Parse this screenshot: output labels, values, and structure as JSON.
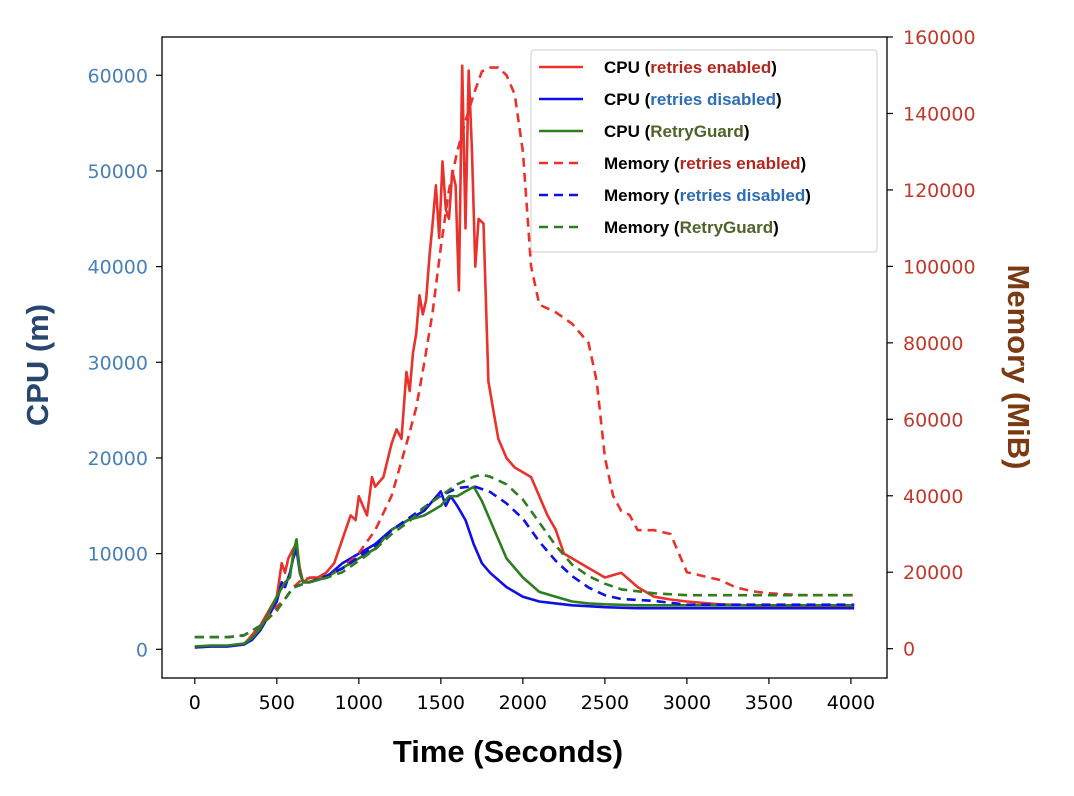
{
  "chart_data": {
    "type": "line",
    "xlabel": "Time (Seconds)",
    "ylabel_left": "CPU (m)",
    "ylabel_right": "Memory (MiB)",
    "xlim": [
      -200,
      4220
    ],
    "ylim_left": [
      -3000,
      64000
    ],
    "ylim_right": [
      -7666,
      160000
    ],
    "x_ticks": [
      0,
      500,
      1000,
      1500,
      2000,
      2500,
      3000,
      3500,
      4000
    ],
    "y_left_ticks": [
      0,
      10000,
      20000,
      30000,
      40000,
      50000,
      60000
    ],
    "y_right_ticks": [
      0,
      20000,
      40000,
      60000,
      80000,
      100000,
      120000,
      140000,
      160000
    ],
    "grid": false,
    "legend_position": "top-right",
    "colors": {
      "enabled": "#e8322b",
      "disabled": "#1010e6",
      "retryguard": "#2e7d1e",
      "left_axis_ticks": "#4a80b8",
      "right_axis_ticks": "#c0392b",
      "left_axis_title": "#27476e",
      "right_axis_title": "#7a3b12",
      "legend_enabled_text": "#b0281f",
      "legend_disabled_text": "#2e6db4",
      "legend_retryguard_text": "#4f6228"
    },
    "series": [
      {
        "name": "CPU (retries enabled)",
        "key": "enabled",
        "axis": "left",
        "dashed": false,
        "x": [
          0,
          100,
          200,
          300,
          350,
          400,
          450,
          500,
          530,
          550,
          570,
          600,
          620,
          640,
          660,
          700,
          750,
          800,
          850,
          900,
          950,
          980,
          1000,
          1050,
          1080,
          1100,
          1150,
          1200,
          1230,
          1260,
          1290,
          1310,
          1330,
          1350,
          1370,
          1390,
          1410,
          1430,
          1450,
          1470,
          1490,
          1510,
          1530,
          1550,
          1570,
          1590,
          1610,
          1630,
          1650,
          1670,
          1690,
          1710,
          1730,
          1760,
          1790,
          1820,
          1850,
          1900,
          1950,
          2000,
          2050,
          2100,
          2150,
          2200,
          2250,
          2300,
          2400,
          2500,
          2600,
          2700,
          2800,
          2900,
          3000,
          3200,
          3500,
          3800,
          4020
        ],
        "y": [
          200,
          300,
          300,
          500,
          1500,
          2500,
          4000,
          5500,
          9000,
          8000,
          9500,
          10500,
          11000,
          8500,
          7000,
          7500,
          7500,
          8000,
          9000,
          11500,
          14000,
          13500,
          16000,
          14000,
          18000,
          17000,
          18000,
          21500,
          23000,
          22000,
          29000,
          27000,
          31000,
          33000,
          37000,
          35000,
          36500,
          41000,
          44500,
          48500,
          43000,
          51000,
          46000,
          45000,
          50000,
          48500,
          37500,
          61000,
          44000,
          60500,
          52000,
          40000,
          45000,
          44500,
          28000,
          25000,
          22000,
          20000,
          19000,
          18500,
          18000,
          16000,
          14000,
          12500,
          10000,
          9500,
          8500,
          7500,
          8000,
          6500,
          5500,
          5200,
          5000,
          4700,
          4500,
          4500,
          4500
        ]
      },
      {
        "name": "CPU (retries disabled)",
        "key": "disabled",
        "axis": "left",
        "dashed": false,
        "x": [
          0,
          100,
          200,
          300,
          350,
          400,
          450,
          500,
          530,
          550,
          580,
          600,
          620,
          640,
          660,
          700,
          800,
          900,
          1000,
          1100,
          1200,
          1300,
          1400,
          1450,
          1500,
          1530,
          1560,
          1600,
          1650,
          1700,
          1750,
          1800,
          1900,
          2000,
          2100,
          2200,
          2300,
          2400,
          2500,
          2700,
          3000,
          3500,
          4020
        ],
        "y": [
          200,
          300,
          300,
          500,
          1000,
          2000,
          3500,
          5000,
          7000,
          6500,
          8000,
          9500,
          10500,
          8000,
          7000,
          7000,
          7500,
          9000,
          10000,
          11000,
          12500,
          13500,
          14500,
          15500,
          16500,
          15000,
          16000,
          15000,
          13500,
          11000,
          9000,
          8000,
          6500,
          5500,
          5000,
          4800,
          4600,
          4500,
          4400,
          4300,
          4300,
          4300,
          4300
        ]
      },
      {
        "name": "CPU (RetryGuard)",
        "key": "retryguard",
        "axis": "left",
        "dashed": false,
        "x": [
          0,
          100,
          200,
          300,
          350,
          400,
          450,
          500,
          550,
          580,
          600,
          620,
          640,
          660,
          700,
          800,
          900,
          1000,
          1100,
          1200,
          1300,
          1400,
          1500,
          1550,
          1600,
          1650,
          1700,
          1750,
          1800,
          1850,
          1900,
          2000,
          2100,
          2200,
          2300,
          2400,
          2500,
          2700,
          3000,
          3500,
          4020
        ],
        "y": [
          300,
          400,
          400,
          600,
          1200,
          2200,
          3800,
          5500,
          7000,
          7500,
          10000,
          11500,
          8000,
          7000,
          7000,
          7500,
          8500,
          9500,
          10500,
          12500,
          13500,
          14000,
          15000,
          16000,
          16000,
          16500,
          17000,
          15500,
          13500,
          11500,
          9500,
          7500,
          6000,
          5500,
          5000,
          4800,
          4700,
          4600,
          4600,
          4600,
          4600
        ]
      },
      {
        "name": "Memory (retries enabled)",
        "key": "enabled",
        "axis": "right",
        "dashed": true,
        "x": [
          0,
          100,
          200,
          300,
          400,
          500,
          550,
          600,
          650,
          700,
          800,
          900,
          1000,
          1100,
          1200,
          1300,
          1350,
          1400,
          1450,
          1500,
          1550,
          1600,
          1650,
          1700,
          1750,
          1800,
          1850,
          1900,
          1950,
          2000,
          2050,
          2100,
          2200,
          2300,
          2400,
          2450,
          2500,
          2550,
          2600,
          2650,
          2700,
          2800,
          2900,
          3000,
          3100,
          3200,
          3300,
          3400,
          3500,
          3700,
          4020
        ],
        "y": [
          3000,
          3000,
          3000,
          3500,
          6000,
          11000,
          13000,
          16000,
          18000,
          18500,
          19000,
          21000,
          25000,
          31000,
          40000,
          55000,
          63000,
          75000,
          88000,
          105000,
          120000,
          130000,
          138000,
          145000,
          151000,
          152000,
          152000,
          150000,
          145000,
          130000,
          100000,
          90000,
          88000,
          85000,
          80000,
          70000,
          50000,
          40000,
          36000,
          35000,
          31000,
          31000,
          30000,
          20000,
          19000,
          18000,
          16000,
          15000,
          14500,
          14000,
          14000
        ]
      },
      {
        "name": "Memory (retries disabled)",
        "key": "disabled",
        "axis": "right",
        "dashed": true,
        "x": [
          0,
          100,
          200,
          300,
          400,
          500,
          600,
          700,
          800,
          900,
          1000,
          1100,
          1200,
          1300,
          1400,
          1500,
          1550,
          1600,
          1700,
          1800,
          1900,
          2000,
          2100,
          2200,
          2300,
          2400,
          2500,
          2600,
          2800,
          3000,
          3500,
          4020
        ],
        "y": [
          3000,
          3000,
          3000,
          3500,
          6000,
          10000,
          16000,
          17500,
          19000,
          21000,
          24000,
          27000,
          31000,
          34000,
          37000,
          40000,
          41000,
          42000,
          42500,
          41000,
          38000,
          34000,
          28000,
          23000,
          19000,
          16000,
          14000,
          13000,
          12500,
          11500,
          11500,
          11500
        ]
      },
      {
        "name": "Memory (RetryGuard)",
        "key": "retryguard",
        "axis": "right",
        "dashed": true,
        "x": [
          0,
          100,
          200,
          300,
          400,
          500,
          600,
          700,
          800,
          900,
          1000,
          1100,
          1200,
          1300,
          1400,
          1500,
          1550,
          1600,
          1700,
          1750,
          1800,
          1900,
          2000,
          2100,
          2200,
          2300,
          2400,
          2500,
          2600,
          2700,
          2800,
          3000,
          3500,
          4020
        ],
        "y": [
          3000,
          3000,
          3000,
          3500,
          6000,
          10000,
          16000,
          17500,
          18500,
          20000,
          23000,
          26000,
          30000,
          33000,
          37000,
          40000,
          41500,
          43000,
          45000,
          45500,
          45000,
          43000,
          39000,
          33000,
          27000,
          22000,
          19000,
          17000,
          15500,
          15000,
          14500,
          14000,
          14000,
          14000
        ]
      }
    ],
    "legend": [
      {
        "prefix": "CPU (",
        "highlight": "retries enabled",
        "suffix": ")",
        "key": "enabled",
        "dashed": false
      },
      {
        "prefix": "CPU (",
        "highlight": "retries disabled",
        "suffix": ")",
        "key": "disabled",
        "dashed": false
      },
      {
        "prefix": "CPU (",
        "highlight": "RetryGuard",
        "suffix": ")",
        "key": "retryguard",
        "dashed": false
      },
      {
        "prefix": "Memory (",
        "highlight": "retries enabled",
        "suffix": ")",
        "key": "enabled",
        "dashed": true
      },
      {
        "prefix": "Memory (",
        "highlight": "retries disabled",
        "suffix": ")",
        "key": "disabled",
        "dashed": true
      },
      {
        "prefix": "Memory (",
        "highlight": "RetryGuard",
        "suffix": ")",
        "key": "retryguard",
        "dashed": true
      }
    ]
  }
}
